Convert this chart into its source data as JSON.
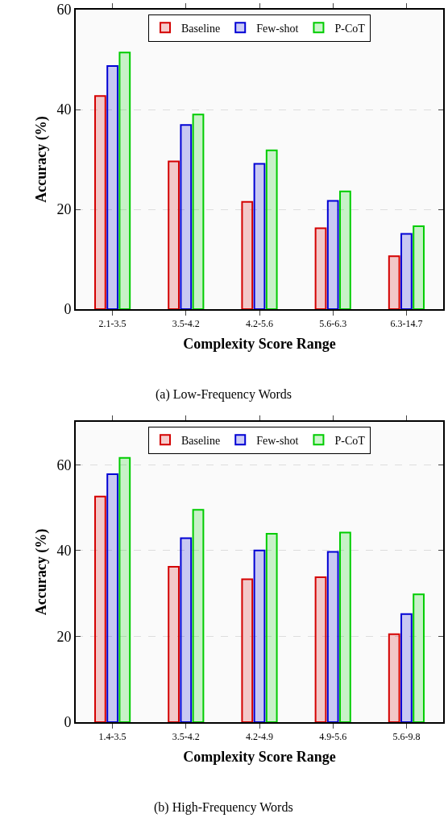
{
  "chart_data": [
    {
      "type": "bar",
      "xlabel": "Complexity Score Range",
      "ylabel": "Accuracy (%)",
      "categories": [
        "2.1-3.5",
        "3.5-4.2",
        "4.2-5.6",
        "5.6-6.3",
        "6.3-14.7"
      ],
      "series": [
        {
          "name": "Baseline",
          "color": "#d40000",
          "values": [
            42.7,
            29.6,
            21.5,
            16.2,
            10.6
          ]
        },
        {
          "name": "Few-shot",
          "color": "#0000d4",
          "values": [
            48.7,
            36.9,
            29.1,
            21.7,
            15.1
          ]
        },
        {
          "name": "P-CoT",
          "color": "#00cc00",
          "values": [
            51.4,
            39.0,
            31.8,
            23.6,
            16.6
          ]
        }
      ],
      "ylim": [
        0,
        60
      ],
      "yticks": [
        0,
        20,
        40,
        60
      ],
      "grid": "y",
      "legend": "top",
      "annotations": [
        "(a) Low-Frequency Words"
      ]
    },
    {
      "type": "bar",
      "xlabel": "Complexity Score Range",
      "ylabel": "Accuracy (%)",
      "categories": [
        "1.4-3.5",
        "3.5-4.2",
        "4.2-4.9",
        "4.9-5.6",
        "5.6-9.8"
      ],
      "series": [
        {
          "name": "Baseline",
          "color": "#d40000",
          "values": [
            52.6,
            36.2,
            33.3,
            33.8,
            20.5
          ]
        },
        {
          "name": "Few-shot",
          "color": "#0000d4",
          "values": [
            57.8,
            42.9,
            40.0,
            39.7,
            25.2
          ]
        },
        {
          "name": "P-CoT",
          "color": "#00cc00",
          "values": [
            61.6,
            49.5,
            43.9,
            44.2,
            29.8
          ]
        }
      ],
      "ylim": [
        0,
        70
      ],
      "yticks": [
        0,
        20,
        40,
        60
      ],
      "grid": "y",
      "legend": "top",
      "annotations": [
        "(b) High-Frequency Words"
      ]
    }
  ]
}
